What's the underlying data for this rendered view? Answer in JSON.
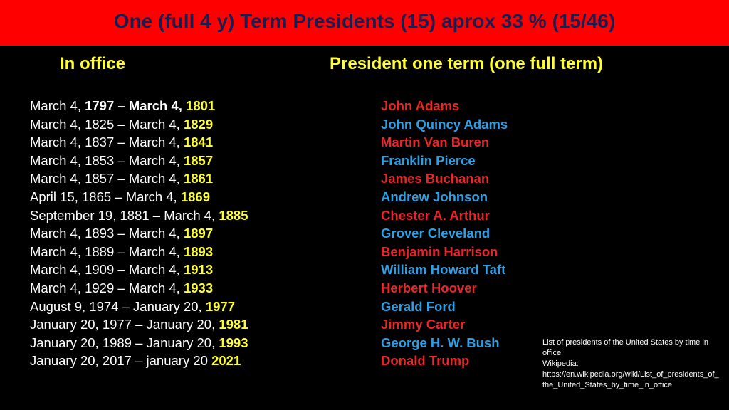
{
  "header": {
    "title": "One (full 4 y) Term Presidents  (15) aprox 33 % (15/46)"
  },
  "columns": {
    "office": "In office",
    "president": "President one term (one full term)"
  },
  "rows": [
    {
      "prefix": "March 4, ",
      "bold": "1797 – March 4, ",
      "year": "1801",
      "president": "John Adams"
    },
    {
      "prefix": "March 4, 1825 – March 4, ",
      "year": "1829",
      "president": "John Quincy Adams"
    },
    {
      "prefix": "March 4, 1837 – March 4, ",
      "year": "1841",
      "president": "Martin Van Buren"
    },
    {
      "prefix": "March 4, 1853 – March 4, ",
      "year": "1857",
      "president": "Franklin Pierce"
    },
    {
      "prefix": "March 4, 1857 – March 4, ",
      "year": "1861",
      "president": "James Buchanan"
    },
    {
      "prefix": "April 15, 1865 – March 4, ",
      "year": "1869",
      "president": "Andrew Johnson"
    },
    {
      "prefix": "September 19, 1881 – March 4, ",
      "year": "1885",
      "president": "Chester A. Arthur"
    },
    {
      "prefix": "March 4, 1893 – March 4, ",
      "year": "1897",
      "president": "Grover Cleveland"
    },
    {
      "prefix": "March 4, 1889 – March 4, ",
      "year": "1893",
      "president": "Benjamin Harrison"
    },
    {
      "prefix": "March 4, 1909 – March 4, ",
      "year": "1913",
      "president": "William Howard Taft"
    },
    {
      "prefix": "March 4, 1929 – March 4, ",
      "year": "1933",
      "president": "Herbert Hoover"
    },
    {
      "prefix": "August 9, 1974 – January 20, ",
      "year": "1977",
      "president": "Gerald Ford"
    },
    {
      "prefix": "January 20, 1977 – January 20, ",
      "year": "1981",
      "president": "Jimmy Carter"
    },
    {
      "prefix": "January 20, 1989 – January 20, ",
      "year": "1993",
      "president": "George H. W. Bush"
    },
    {
      "prefix": "January 20, 2017 – january 20 ",
      "year": "2021",
      "president": "Donald Trump"
    }
  ],
  "note": [
    "List of presidents of the United States by time in office",
    "Wikipedia:",
    "https://en.wikipedia.org/wiki/List_of_presidents_of_the_United_States_by_time_in_office"
  ]
}
